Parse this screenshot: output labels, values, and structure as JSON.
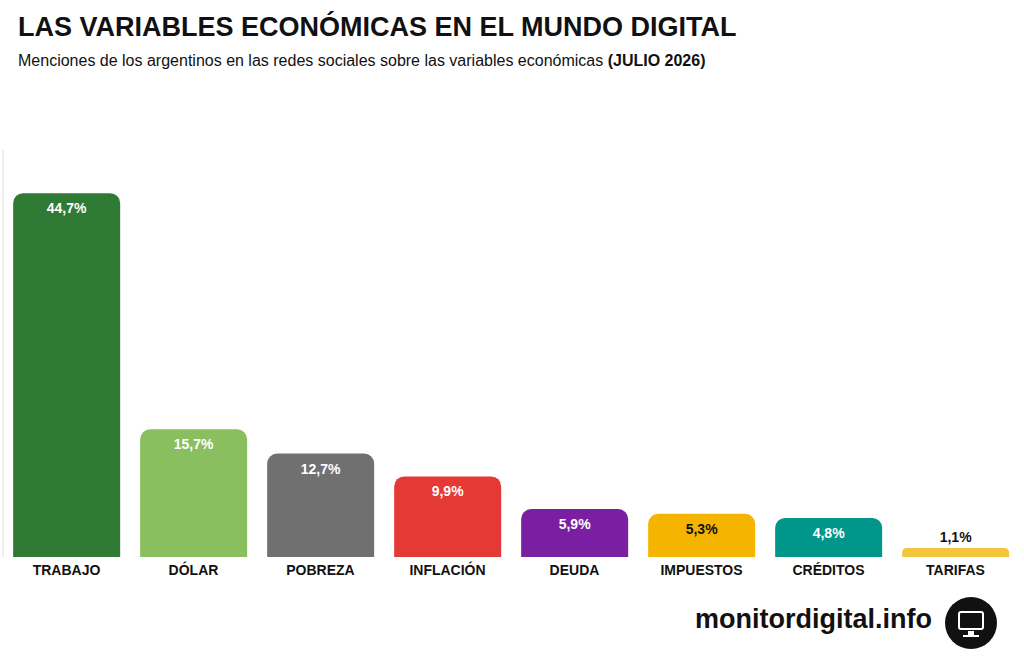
{
  "chart_data": {
    "type": "bar",
    "title": "LAS VARIABLES ECONÓMICAS EN EL MUNDO DIGITAL",
    "subtitle": "Menciones de los argentinos en las redes sociales sobre las variables económicas (JULIO 2026)",
    "categories": [
      "TRABAJO",
      "DÓLAR",
      "POBREZA",
      "INFLACIÓN",
      "DEUDA",
      "IMPUESTOS",
      "CRÉDITOS",
      "TARIFAS"
    ],
    "values": [
      44.7,
      15.7,
      12.7,
      9.9,
      5.9,
      5.3,
      4.8,
      1.1
    ],
    "value_labels": [
      "44,7%",
      "15,7%",
      "12,7%",
      "9,9%",
      "5,9%",
      "5,3%",
      "4,8%",
      "1,1%"
    ],
    "colors": [
      "#2f7a34",
      "#8abf5f",
      "#707070",
      "#e53935",
      "#7b1fa2",
      "#f5b400",
      "#00968a",
      "#f2c53d"
    ],
    "ylim": [
      0,
      50
    ],
    "yticks": [],
    "tick_labels": "x",
    "data_labels": true,
    "grid": false,
    "annotations": [
      "monitordigital.info"
    ]
  }
}
